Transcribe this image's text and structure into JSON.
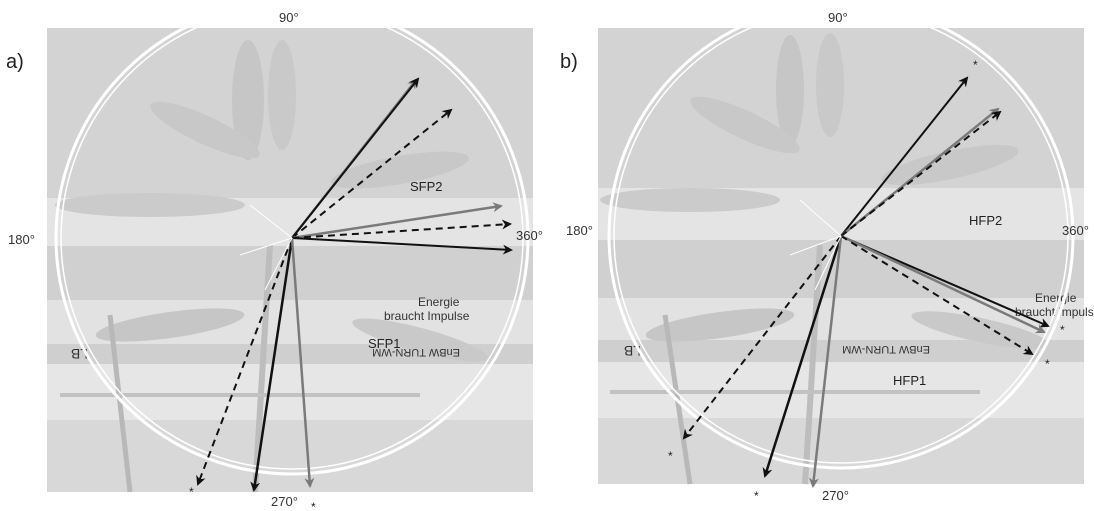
{
  "panels": [
    {
      "label": "a)",
      "degrees": {
        "top": "90°",
        "left": "180°",
        "right": "360°",
        "bottom": "270°"
      },
      "phase_labels": [
        "SFP2",
        "SFP1"
      ],
      "banner": {
        "line1": "Energie",
        "line2": "braucht Impulse",
        "mirror1": "EnBW TURN-WM",
        "mirror2": "LB"
      },
      "stars": [
        "*",
        "*"
      ]
    },
    {
      "label": "b)",
      "degrees": {
        "top": "90°",
        "left": "180°",
        "right": "360°",
        "bottom": "270°"
      },
      "phase_labels": [
        "HFP2",
        "HFP1"
      ],
      "banner": {
        "line1": "Energie",
        "line2": "braucht Impulse",
        "mirror1": "EnBW TURN-WM",
        "mirror2": "LB"
      },
      "stars": [
        "*",
        "*",
        "*",
        "*",
        "*"
      ]
    }
  ],
  "colors": {
    "photo_bg": "#dcdcdc",
    "solid_arrow": "#111111",
    "dashed_arrow": "#111111",
    "grey_arrow": "#7a7a7a",
    "circle": "#ffffff"
  }
}
